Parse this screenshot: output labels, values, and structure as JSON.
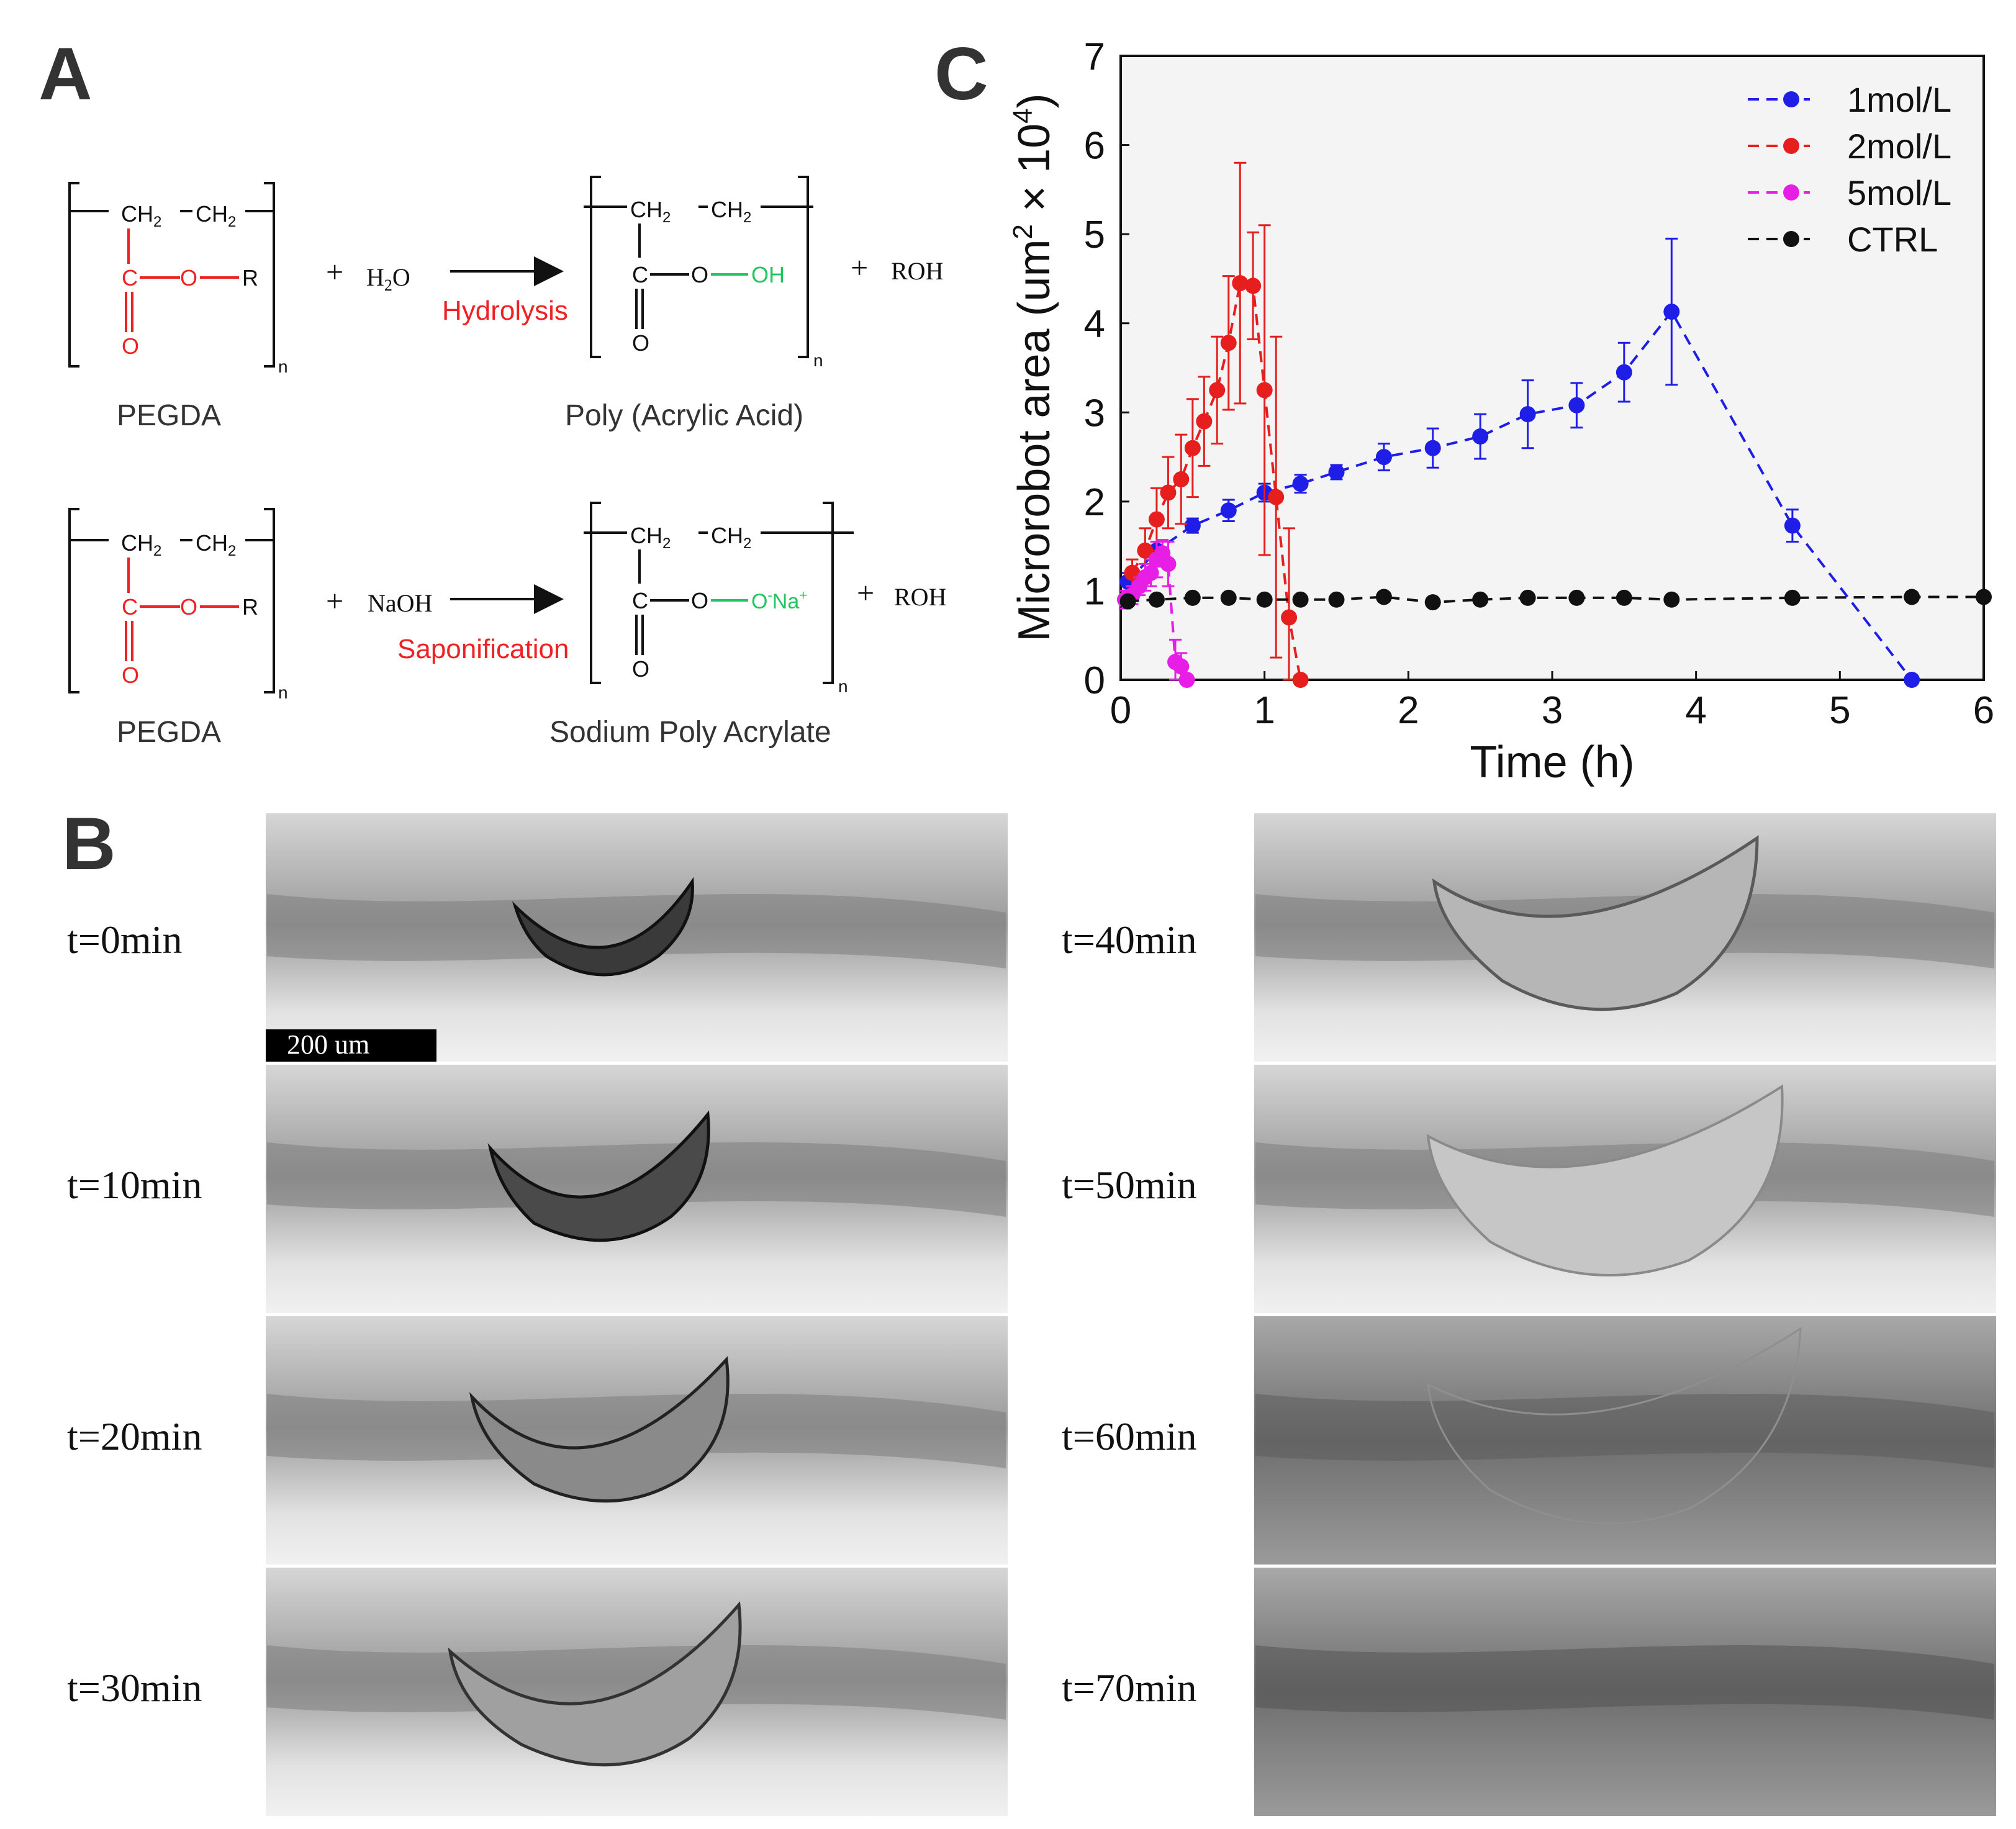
{
  "panels": {
    "a": "A",
    "b": "B",
    "c": "C"
  },
  "reactions": {
    "unit_backbone": [
      "CH",
      "2",
      "CH",
      "2"
    ],
    "carbonyl_c": "C",
    "carbonyl_o": "O",
    "ester_o": "O",
    "r_group": "R",
    "n_sub": "n",
    "row1": {
      "reactant_label": "PEGDA",
      "reagent_main": "H",
      "reagent_sub": "2",
      "reagent_tail": "O",
      "plus1": "+",
      "plus2": "+",
      "condition": "Hydrolysis",
      "end_group": "OH",
      "product_label": "Poly (Acrylic Acid)",
      "byproduct": "ROH"
    },
    "row2": {
      "reactant_label": "PEGDA",
      "reagent": "NaOH",
      "plus1": "+",
      "plus2": "+",
      "condition": "Saponification",
      "end_group_o": "O",
      "end_group_minus": "-",
      "end_group_na": "Na",
      "end_group_plus": "+",
      "product_label": "Sodium Poly Acrylate",
      "byproduct": "ROH"
    }
  },
  "micrographs": {
    "scale_bar": "200 um",
    "frames": [
      {
        "label": "t=0min",
        "minutes": 0
      },
      {
        "label": "t=10min",
        "minutes": 10
      },
      {
        "label": "t=20min",
        "minutes": 20
      },
      {
        "label": "t=30min",
        "minutes": 30
      },
      {
        "label": "t=40min",
        "minutes": 40
      },
      {
        "label": "t=50min",
        "minutes": 50
      },
      {
        "label": "t=60min",
        "minutes": 60
      },
      {
        "label": "t=70min",
        "minutes": 70
      }
    ]
  },
  "colors": {
    "blue": "#1e1ee6",
    "red": "#e61e1e",
    "magenta": "#e61ee6",
    "black": "#111111",
    "green": "#22c55e",
    "rxn_red": "#ee2222"
  },
  "chart_data": {
    "type": "line",
    "xlabel": "Time (h)",
    "ylabel_main": "Microrobot area (um",
    "ylabel_sup1": "2",
    "ylabel_mid": " × 10",
    "ylabel_sup2": "4",
    "ylabel_end": ")",
    "xlim": [
      0,
      6
    ],
    "ylim": [
      0,
      7
    ],
    "xticks": [
      0,
      1,
      2,
      3,
      4,
      5,
      6
    ],
    "yticks": [
      0,
      1,
      2,
      3,
      4,
      5,
      6,
      7
    ],
    "legend_position": "top-right",
    "series": [
      {
        "name": "1mol/L",
        "color": "#1e1ee6",
        "x": [
          0.05,
          0.25,
          0.5,
          0.75,
          1.0,
          1.25,
          1.5,
          1.83,
          2.17,
          2.5,
          2.83,
          3.17,
          3.5,
          3.83,
          4.67,
          5.5
        ],
        "y": [
          1.1,
          1.45,
          1.73,
          1.9,
          2.1,
          2.2,
          2.33,
          2.5,
          2.6,
          2.73,
          2.98,
          3.08,
          3.45,
          4.13,
          1.73,
          0.0
        ],
        "err": [
          0.1,
          0.1,
          0.08,
          0.12,
          0.1,
          0.1,
          0.08,
          0.15,
          0.22,
          0.25,
          0.38,
          0.25,
          0.33,
          0.82,
          0.18,
          0.0
        ]
      },
      {
        "name": "2mol/L",
        "color": "#e61e1e",
        "x": [
          0.08,
          0.17,
          0.25,
          0.33,
          0.42,
          0.5,
          0.58,
          0.67,
          0.75,
          0.83,
          0.92,
          1.0,
          1.08,
          1.17,
          1.25
        ],
        "y": [
          1.2,
          1.45,
          1.8,
          2.1,
          2.25,
          2.6,
          2.9,
          3.25,
          3.78,
          4.45,
          4.42,
          3.25,
          2.05,
          0.7,
          0.0
        ],
        "err": [
          0.15,
          0.25,
          0.35,
          0.4,
          0.5,
          0.55,
          0.5,
          0.6,
          0.75,
          1.35,
          0.6,
          1.85,
          1.8,
          1.0,
          0.05
        ]
      },
      {
        "name": "5mol/L",
        "color": "#e61ee6",
        "x": [
          0.03,
          0.08,
          0.13,
          0.17,
          0.21,
          0.25,
          0.29,
          0.33,
          0.38,
          0.42,
          0.46
        ],
        "y": [
          0.9,
          0.95,
          1.05,
          1.15,
          1.2,
          1.35,
          1.42,
          1.3,
          0.2,
          0.15,
          0.0
        ],
        "err": [
          0.1,
          0.1,
          0.1,
          0.15,
          0.15,
          0.2,
          0.15,
          0.25,
          0.25,
          0.15,
          0.05
        ]
      },
      {
        "name": "CTRL",
        "color": "#111111",
        "x": [
          0.05,
          0.25,
          0.5,
          0.75,
          1.0,
          1.25,
          1.5,
          1.83,
          2.17,
          2.5,
          2.83,
          3.17,
          3.5,
          3.83,
          4.67,
          5.5,
          6.0
        ],
        "y": [
          0.88,
          0.9,
          0.92,
          0.92,
          0.9,
          0.9,
          0.9,
          0.93,
          0.87,
          0.9,
          0.92,
          0.92,
          0.92,
          0.9,
          0.92,
          0.93,
          0.93
        ],
        "err": [
          0.05,
          0.03,
          0.03,
          0.03,
          0.03,
          0.03,
          0.03,
          0.03,
          0.03,
          0.03,
          0.03,
          0.03,
          0.03,
          0.03,
          0.03,
          0.03,
          0.03
        ]
      }
    ]
  }
}
